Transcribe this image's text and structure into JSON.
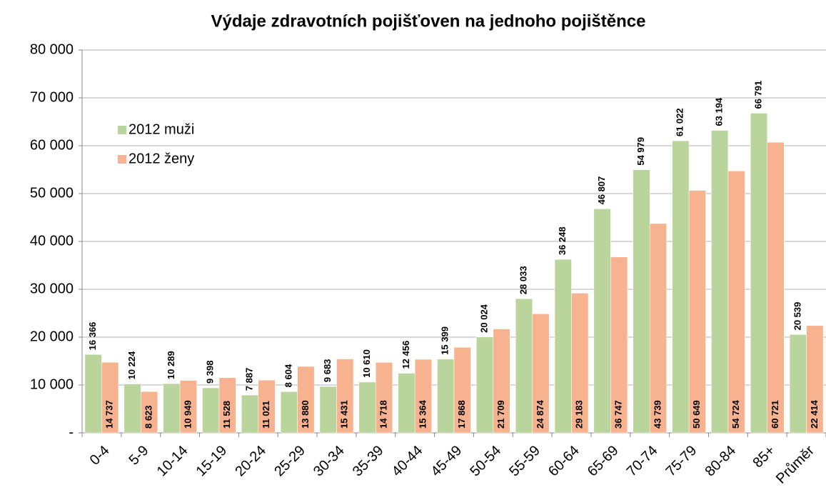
{
  "chart_data": {
    "type": "bar",
    "title": "Výdaje zdravotních pojišťoven na jednoho pojištěnce",
    "categories": [
      "0-4",
      "5-9",
      "10-14",
      "15-19",
      "20-24",
      "25-29",
      "30-34",
      "35-39",
      "40-44",
      "45-49",
      "50-54",
      "55-59",
      "60-64",
      "65-69",
      "70-74",
      "75-79",
      "80-84",
      "85+",
      "Průměr"
    ],
    "series": [
      {
        "name": "2012 muži",
        "color": "#b9d59b",
        "values": [
          16366,
          10224,
          10289,
          9398,
          7887,
          8604,
          9683,
          10610,
          12456,
          15399,
          20024,
          28033,
          36248,
          46807,
          54979,
          61022,
          63194,
          66791,
          20539
        ],
        "value_labels": [
          "16 366",
          "10 224",
          "10 289",
          "9 398",
          "7 887",
          "8 604",
          "9 683",
          "10 610",
          "12 456",
          "15 399",
          "20 024",
          "28 033",
          "36 248",
          "46 807",
          "54 979",
          "61 022",
          "63 194",
          "66 791",
          "20 539"
        ]
      },
      {
        "name": "2012 ženy",
        "color": "#f7b38f",
        "values": [
          14737,
          8623,
          10949,
          11528,
          11021,
          13880,
          15431,
          14718,
          15364,
          17868,
          21709,
          24874,
          29183,
          36747,
          43739,
          50649,
          54724,
          60721,
          22414
        ],
        "value_labels": [
          "14 737",
          "8 623",
          "10 949",
          "11 528",
          "11 021",
          "13 880",
          "15 431",
          "14 718",
          "15 364",
          "17 868",
          "21 709",
          "24 874",
          "29 183",
          "36 747",
          "43 739",
          "50 649",
          "54 724",
          "60 721",
          "22 414"
        ]
      }
    ],
    "ylim": [
      0,
      80000
    ],
    "yticks": [
      {
        "value": 0,
        "label": "-"
      },
      {
        "value": 10000,
        "label": "10 000"
      },
      {
        "value": 20000,
        "label": "20 000"
      },
      {
        "value": 30000,
        "label": "30 000"
      },
      {
        "value": 40000,
        "label": "40 000"
      },
      {
        "value": 50000,
        "label": "50 000"
      },
      {
        "value": 60000,
        "label": "60 000"
      },
      {
        "value": 70000,
        "label": "70 000"
      },
      {
        "value": 80000,
        "label": "80 000"
      }
    ],
    "grid": true,
    "legend": "upper left"
  }
}
